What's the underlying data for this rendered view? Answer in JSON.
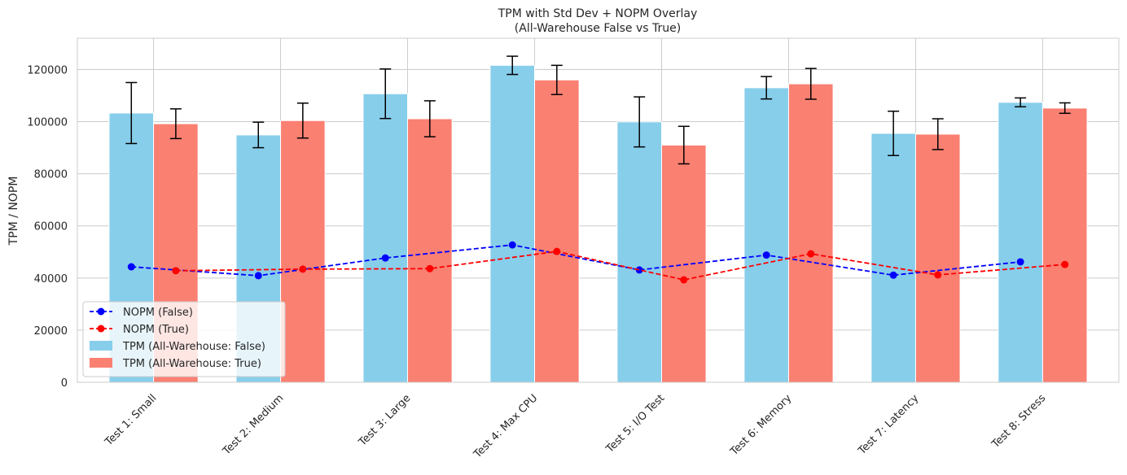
{
  "chart_data": {
    "type": "bar",
    "title": "TPM with Std Dev + NOPM Overlay",
    "subtitle": "(All-Warehouse False vs True)",
    "xlabel": "",
    "ylabel": "TPM / NOPM",
    "ylim": [
      0,
      132000
    ],
    "yticks": [
      0,
      20000,
      40000,
      60000,
      80000,
      100000,
      120000
    ],
    "grid": true,
    "legend_position": "lower-left",
    "categories": [
      "Test 1: Small",
      "Test 2: Medium",
      "Test 3: Large",
      "Test 4: Max CPU",
      "Test 5: I/O Test",
      "Test 6: Memory",
      "Test 7: Latency",
      "Test 8: Stress"
    ],
    "series": [
      {
        "name": "TPM (All-Warehouse: False)",
        "kind": "bar",
        "color": "#87ceeb",
        "values": [
          103300,
          94900,
          110700,
          121600,
          99900,
          113000,
          95500,
          107400
        ],
        "std": [
          11700,
          4900,
          9500,
          3500,
          9600,
          4300,
          8500,
          1700
        ]
      },
      {
        "name": "TPM (All-Warehouse: True)",
        "kind": "bar",
        "color": "#fa8072",
        "values": [
          99200,
          100400,
          101100,
          116000,
          91000,
          114500,
          95200,
          105200
        ],
        "std": [
          5700,
          6700,
          6900,
          5600,
          7200,
          5900,
          5900,
          2000
        ]
      },
      {
        "name": "NOPM (False)",
        "kind": "line",
        "color": "#0000ff",
        "values": [
          44300,
          40900,
          47700,
          52700,
          43100,
          48800,
          41100,
          46200
        ]
      },
      {
        "name": "NOPM (True)",
        "kind": "line",
        "color": "#ff0000",
        "values": [
          42800,
          43400,
          43600,
          50200,
          39300,
          49300,
          41200,
          45200
        ]
      }
    ]
  }
}
